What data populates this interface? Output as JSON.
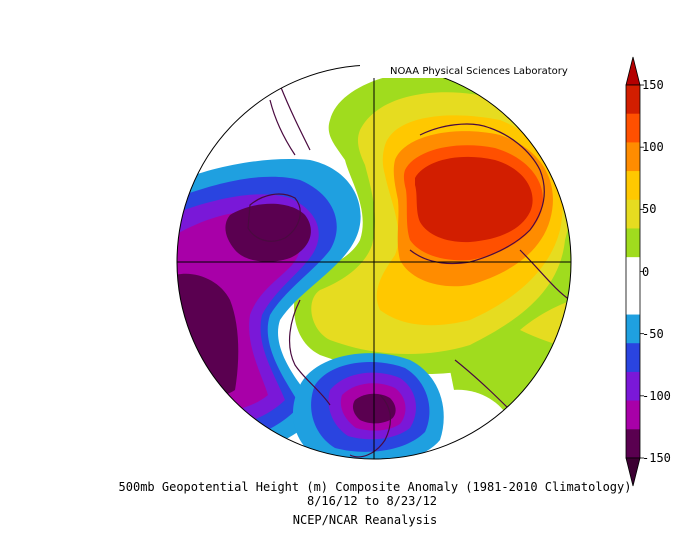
{
  "attribution": "NOAA Physical Sciences Laboratory",
  "caption": {
    "line1": "500mb Geopotential Height (m) Composite Anomaly (1981-2010 Climatology)",
    "line2": "8/16/12 to 8/23/12",
    "line3": "NCEP/NCAR Reanalysis"
  },
  "colorbar": {
    "ticks": [
      "150",
      "100",
      "50",
      "0",
      "-50",
      "-100",
      "-150"
    ],
    "colors": [
      "#5a0050",
      "#a800a8",
      "#7a18d8",
      "#2a44e0",
      "#1fa0e0",
      "#ffffff",
      "#ffffff",
      "#a0dc1e",
      "#e6dc20",
      "#ffc800",
      "#ff8c00",
      "#ff5000",
      "#d21e00"
    ],
    "min_arrow_color": "#3c0032",
    "max_arrow_color": "#b40000"
  },
  "map": {
    "projection": "north polar stereographic",
    "outline_color": "#4a0a40"
  }
}
